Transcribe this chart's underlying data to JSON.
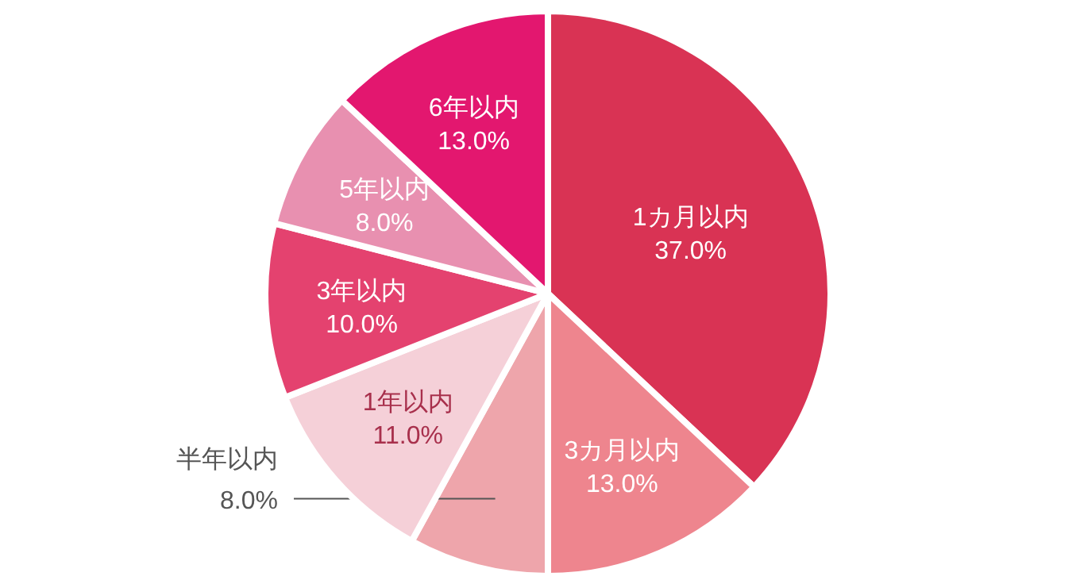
{
  "chart_data": {
    "type": "pie",
    "categories": [
      "1カ月以内",
      "3カ月以内",
      "半年以内",
      "1年以内",
      "3年以内",
      "5年以内",
      "6年以内"
    ],
    "values": [
      37,
      13,
      8,
      11,
      10,
      8,
      13
    ],
    "value_labels": [
      "37.0%",
      "13.0%",
      "8.0%",
      "11.0%",
      "10.0%",
      "8.0%",
      "13.0%"
    ],
    "colors": [
      "#d93354",
      "#ee858e",
      "#eea5ab",
      "#f5d0d8",
      "#e4426f",
      "#e890b0",
      "#e3176f"
    ],
    "legend": false
  }
}
